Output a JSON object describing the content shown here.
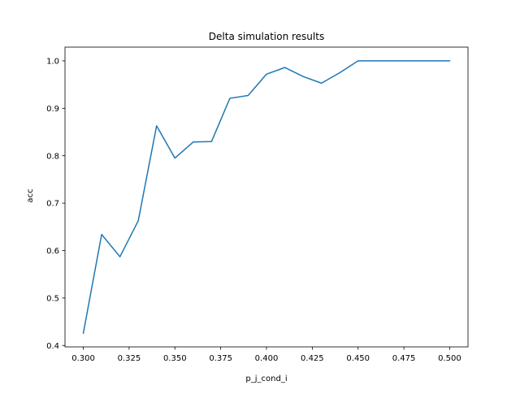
{
  "chart_data": {
    "type": "line",
    "title": "Delta simulation results",
    "xlabel": "p_j_cond_i",
    "ylabel": "acc",
    "xlim": [
      0.29,
      0.51
    ],
    "ylim": [
      0.397,
      1.029
    ],
    "grid": false,
    "line_color": "#1f77b4",
    "x_ticks": [
      0.3,
      0.325,
      0.35,
      0.375,
      0.4,
      0.425,
      0.45,
      0.475,
      0.5
    ],
    "x_tick_labels": [
      "0.300",
      "0.325",
      "0.350",
      "0.375",
      "0.400",
      "0.425",
      "0.450",
      "0.475",
      "0.500"
    ],
    "y_ticks": [
      0.4,
      0.5,
      0.6,
      0.7,
      0.8,
      0.9,
      1.0
    ],
    "y_tick_labels": [
      "0.4",
      "0.5",
      "0.6",
      "0.7",
      "0.8",
      "0.9",
      "1.0"
    ],
    "series": [
      {
        "x": [
          0.3,
          0.31,
          0.32,
          0.33,
          0.34,
          0.35,
          0.36,
          0.37,
          0.38,
          0.39,
          0.4,
          0.41,
          0.42,
          0.43,
          0.44,
          0.45,
          0.46,
          0.47,
          0.48,
          0.49,
          0.5
        ],
        "y": [
          0.426,
          0.634,
          0.587,
          0.663,
          0.863,
          0.795,
          0.829,
          0.83,
          0.921,
          0.927,
          0.972,
          0.986,
          0.967,
          0.953,
          0.975,
          1.0,
          1.0,
          1.0,
          1.0,
          1.0,
          1.0
        ]
      }
    ]
  }
}
